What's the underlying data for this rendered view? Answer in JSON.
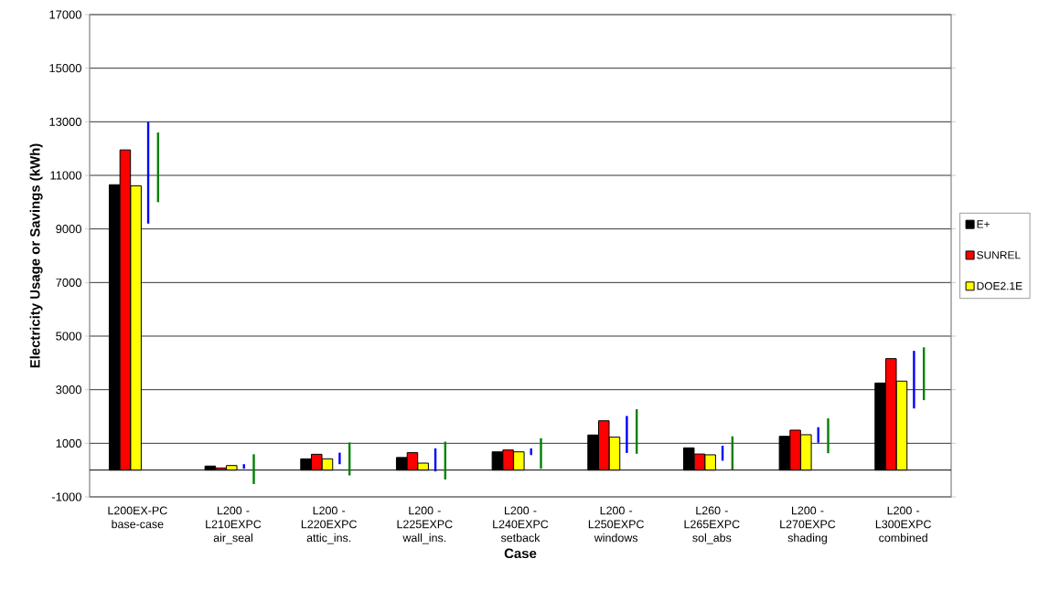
{
  "chart_data": {
    "type": "bar",
    "xlabel": "Case",
    "ylabel": "Electricity Usage or Savings (kWh)",
    "categories": [
      "L200EX-PC base-case",
      "L200 - L210EXPC air_seal",
      "L200 - L220EXPC attic_ins.",
      "L200 - L225EXPC wall_ins.",
      "L200 - L240EXPC setback",
      "L200 - L250EXPC windows",
      "L260 - L265EXPC sol_abs",
      "L200 - L270EXPC shading",
      "L200 - L300EXPC combined"
    ],
    "series": [
      {
        "name": "E+",
        "color": "#000000",
        "values": [
          10650,
          150,
          420,
          470,
          680,
          1310,
          830,
          1260,
          3250
        ]
      },
      {
        "name": "SUNREL",
        "color": "#ff0000",
        "values": [
          11950,
          80,
          590,
          650,
          750,
          1840,
          600,
          1490,
          4160
        ]
      },
      {
        "name": "DOE2.1E",
        "color": "#ffff00",
        "values": [
          10610,
          170,
          420,
          260,
          680,
          1230,
          570,
          1320,
          3320
        ]
      },
      {
        "color": "#0000ff",
        "base": [
          9200,
          50,
          220,
          -50,
          560,
          640,
          350,
          1020,
          2300
        ],
        "values": [
          3800,
          170,
          430,
          860,
          250,
          1380,
          560,
          580,
          2150
        ]
      },
      {
        "color": "#008000",
        "base": [
          10000,
          -520,
          -200,
          -350,
          50,
          610,
          20,
          630,
          2610
        ],
        "values": [
          2600,
          1110,
          1230,
          1410,
          1140,
          1660,
          1240,
          1300,
          1970
        ]
      }
    ],
    "ylim": [
      -1000,
      17000
    ],
    "yticks": [
      -1000,
      1000,
      3000,
      5000,
      7000,
      9000,
      11000,
      13000,
      15000,
      17000
    ],
    "grid": "y",
    "legend": "right"
  }
}
